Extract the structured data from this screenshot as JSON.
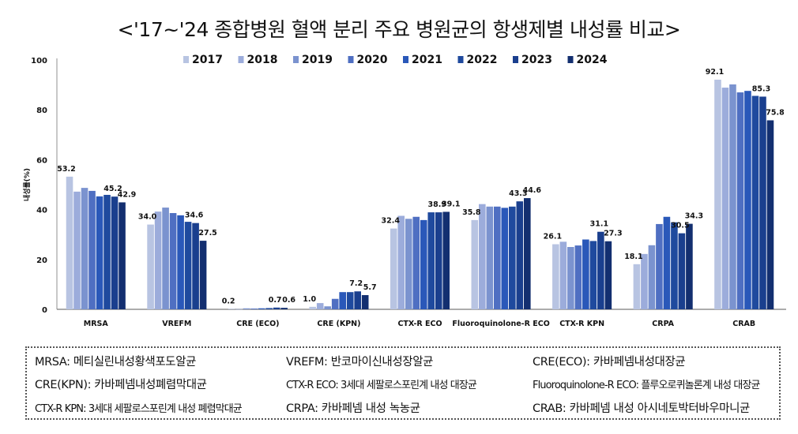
{
  "title": "<'17~'24 종합병원 혈액 분리 주요 병원균의 항생제별 내성률 비교>",
  "chart_data": {
    "type": "bar",
    "title": "<'17~'24 종합병원 혈액 분리 주요 병원균의 항생제별 내성률 비교>",
    "xlabel": "",
    "ylabel": "내성률(%)",
    "ylim": [
      0,
      100
    ],
    "yticks": [
      0,
      20,
      40,
      60,
      80,
      100
    ],
    "grid": false,
    "legend_position": "top-center",
    "categories": [
      "MRSA",
      "VREFM",
      "CRE (ECO)",
      "CRE (KPN)",
      "CTX-R ECO",
      "Fluoroquinolone-R ECO",
      "CTX-R KPN",
      "CRPA",
      "CRAB"
    ],
    "series": [
      {
        "name": "2017",
        "color": "#b8c4e2",
        "values": [
          53.2,
          34.0,
          0.2,
          1.0,
          32.4,
          35.8,
          26.1,
          18.1,
          92.1
        ]
      },
      {
        "name": "2018",
        "color": "#9cacdb",
        "values": [
          47.2,
          39.2,
          0.1,
          2.5,
          37.5,
          42.2,
          27.1,
          22.2,
          88.9
        ]
      },
      {
        "name": "2019",
        "color": "#7b93cf",
        "values": [
          48.7,
          40.8,
          0.4,
          1.2,
          36.3,
          41.2,
          25.0,
          25.7,
          90.2
        ]
      },
      {
        "name": "2020",
        "color": "#4f6fc2",
        "values": [
          47.5,
          38.6,
          0.3,
          4.2,
          37.1,
          41.2,
          25.6,
          34.2,
          87.0
        ]
      },
      {
        "name": "2021",
        "color": "#2a58b9",
        "values": [
          45.3,
          37.7,
          0.4,
          6.9,
          35.8,
          40.7,
          28.0,
          37.1,
          87.6
        ]
      },
      {
        "name": "2022",
        "color": "#1f4a9e",
        "values": [
          45.9,
          35.1,
          0.5,
          6.9,
          38.9,
          41.2,
          27.4,
          34.9,
          85.6
        ]
      },
      {
        "name": "2023",
        "color": "#1a3f8e",
        "values": [
          45.2,
          34.6,
          0.7,
          7.2,
          38.9,
          43.3,
          31.1,
          30.5,
          85.3
        ]
      },
      {
        "name": "2024",
        "color": "#132f70",
        "values": [
          42.9,
          27.5,
          0.6,
          5.7,
          39.1,
          44.6,
          27.3,
          34.3,
          75.8
        ]
      }
    ],
    "data_labels": [
      {
        "category": 0,
        "series": 0,
        "text": "53.2"
      },
      {
        "category": 0,
        "series": 6,
        "text": "45.2"
      },
      {
        "category": 0,
        "series": 7,
        "text": "42.9"
      },
      {
        "category": 1,
        "series": 0,
        "text": "34.0"
      },
      {
        "category": 1,
        "series": 6,
        "text": "34.6"
      },
      {
        "category": 1,
        "series": 7,
        "text": "27.5"
      },
      {
        "category": 2,
        "series": 0,
        "text": "0.2"
      },
      {
        "category": 2,
        "series": 6,
        "text": "0.7"
      },
      {
        "category": 2,
        "series": 7,
        "text": "0.6"
      },
      {
        "category": 3,
        "series": 0,
        "text": "1.0"
      },
      {
        "category": 3,
        "series": 6,
        "text": "7.2"
      },
      {
        "category": 3,
        "series": 7,
        "text": "5.7"
      },
      {
        "category": 4,
        "series": 0,
        "text": "32.4"
      },
      {
        "category": 4,
        "series": 6,
        "text": "38.9"
      },
      {
        "category": 4,
        "series": 7,
        "text": "39.1"
      },
      {
        "category": 5,
        "series": 0,
        "text": "35.8"
      },
      {
        "category": 5,
        "series": 6,
        "text": "43.3"
      },
      {
        "category": 5,
        "series": 7,
        "text": "44.6"
      },
      {
        "category": 6,
        "series": 0,
        "text": "26.1"
      },
      {
        "category": 6,
        "series": 6,
        "text": "31.1"
      },
      {
        "category": 6,
        "series": 7,
        "text": "27.3"
      },
      {
        "category": 7,
        "series": 0,
        "text": "18.1"
      },
      {
        "category": 7,
        "series": 6,
        "text": "30.5"
      },
      {
        "category": 7,
        "series": 7,
        "text": "34.3"
      },
      {
        "category": 8,
        "series": 0,
        "text": "92.1"
      },
      {
        "category": 8,
        "series": 6,
        "text": "85.3"
      },
      {
        "category": 8,
        "series": 7,
        "text": "75.8"
      }
    ]
  },
  "footnote": {
    "items": [
      {
        "text": "MRSA:  메티실린내성황색포도알균"
      },
      {
        "text": "VREFM:  반코마이신내성장알균"
      },
      {
        "text": "CRE(ECO):  카바페넴내성대장균"
      },
      {
        "text": "CRE(KPN):  카바페넴내성폐렴막대균"
      },
      {
        "text": "CTX-R ECO: 3세대 세팔로스포린계 내성 대장균"
      },
      {
        "text": "Fluoroquinolone-R ECO: 플루오로퀴놀론계 내성 대장균"
      },
      {
        "text": "CTX-R KPN: 3세대 세팔로스포린계 내성 폐렴막대균"
      },
      {
        "text": "CRPA:  카바페넴  내성  녹농균"
      },
      {
        "text": "CRAB:  카바페넴  내성  아시네토박터바우마니균"
      }
    ]
  }
}
